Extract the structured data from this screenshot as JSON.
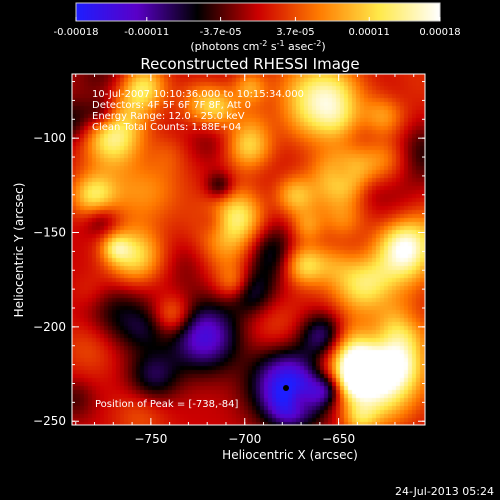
{
  "colorbar": {
    "tick_labels": [
      "-0.00018",
      "-0.00011",
      "-3.7e-05",
      "3.7e-05",
      "0.00011",
      "0.00018"
    ],
    "tick_values": [
      -0.00018,
      -0.00011,
      -3.7e-05,
      3.7e-05,
      0.00011,
      0.00018
    ],
    "range": [
      -0.00018,
      0.00018
    ],
    "units_base": "(photons cm",
    "units_exp1": "-2",
    "units_mid": " s",
    "units_exp2": "-1",
    "units_end": " asec",
    "units_exp3": "-2",
    "units_close": ")",
    "stops": [
      "#1e1eff",
      "#5a00c8",
      "#000000",
      "#cc0000",
      "#ff7a00",
      "#ffe94a",
      "#ffffff"
    ]
  },
  "plot": {
    "title": "Reconstructed RHESSI Image",
    "info_lines": [
      "10-Jul-2007 10:10:36.000 to 10:15:34.000",
      "Detectors: 4F 5F 6F 7F 8F, Att 0",
      "Energy Range: 12.0 - 25.0 keV",
      "Clean    Total Counts: 1.88E+04"
    ],
    "peak_label": "Position of Peak = [-738,-84]",
    "x_axis_label": "Heliocentric X (arcsec)",
    "y_axis_label": "Heliocentric Y (arcsec)",
    "x_ticks": [
      -750,
      -700,
      -650
    ],
    "y_ticks": [
      -100,
      -150,
      -200,
      -250
    ],
    "x_range": [
      -792,
      -604
    ],
    "y_range": [
      -252,
      -66
    ],
    "peak_position": [
      -738,
      -84
    ]
  },
  "footer": {
    "timestamp": "24-Jul-2013 05:24"
  }
}
